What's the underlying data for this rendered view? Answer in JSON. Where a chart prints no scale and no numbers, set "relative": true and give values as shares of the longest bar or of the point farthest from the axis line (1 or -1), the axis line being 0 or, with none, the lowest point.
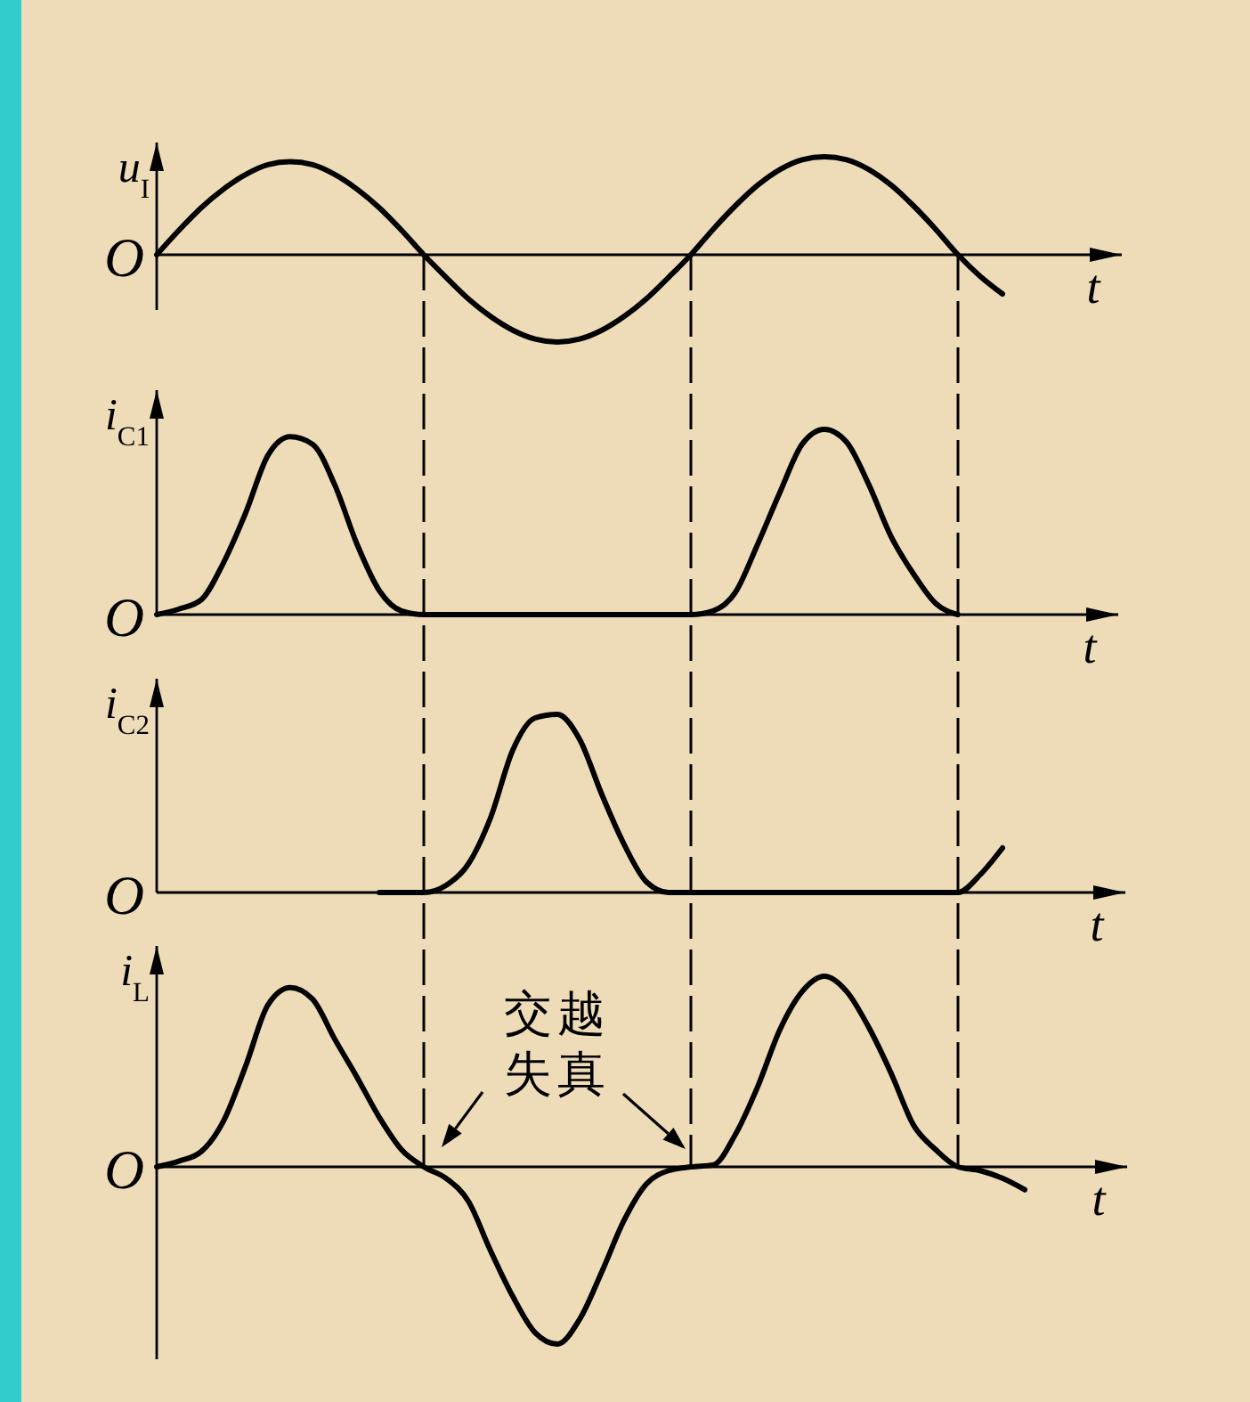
{
  "chart_data": [
    {
      "type": "line",
      "relative": true,
      "ylabel": "u$_{I}$",
      "xlabel": "t",
      "color": "#000000",
      "categories": [
        null,
        null,
        null,
        null,
        null,
        null,
        null,
        null,
        null,
        null,
        null,
        null,
        null,
        null,
        null,
        null,
        null,
        null,
        null,
        null,
        null,
        null,
        null,
        null,
        null,
        null,
        null,
        null,
        null,
        null,
        null,
        null,
        null,
        null,
        null,
        null,
        null,
        null,
        null,
        null
      ],
      "values": [
        0,
        0.25,
        0.48,
        0.67,
        0.82,
        0.92,
        0.95,
        0.92,
        0.82,
        0.67,
        0.48,
        0.25,
        0,
        -0.23,
        -0.45,
        -0.63,
        -0.77,
        -0.86,
        -0.89,
        -0.86,
        -0.77,
        -0.63,
        -0.45,
        -0.23,
        0,
        0.26,
        0.5,
        0.71,
        0.87,
        0.97,
        1,
        0.97,
        0.87,
        0.71,
        0.5,
        0.26,
        0,
        -0.22,
        -0.4,
        null
      ],
      "annotations": [
        "O"
      ]
    },
    {
      "type": "line",
      "relative": true,
      "ylabel": "i$_{C1}$",
      "xlabel": "t",
      "color": "#000000",
      "grid": "x",
      "categories": [
        null,
        null,
        null,
        null,
        null,
        null,
        null,
        null,
        null,
        null,
        null,
        null,
        null,
        null,
        null,
        null,
        null,
        null,
        null,
        null,
        null,
        null,
        null,
        null,
        null,
        null,
        null,
        null,
        null,
        null,
        null,
        null,
        null,
        null,
        null,
        null,
        null,
        null,
        null,
        null
      ],
      "values": [
        0,
        0.03,
        0.08,
        0.28,
        0.55,
        0.86,
        0.96,
        0.92,
        0.7,
        0.38,
        0.13,
        0.02,
        0,
        0,
        0,
        0,
        0,
        0,
        0,
        0,
        0,
        0,
        0,
        0,
        0,
        0.02,
        0.12,
        0.38,
        0.66,
        0.92,
        1,
        0.93,
        0.7,
        0.42,
        0.22,
        0.06,
        0,
        null,
        null,
        null
      ],
      "annotations": [
        "O"
      ]
    },
    {
      "type": "line",
      "relative": true,
      "ylabel": "i$_{C2}$",
      "xlabel": "t",
      "color": "#000000",
      "grid": "x",
      "categories": [
        null,
        null,
        null,
        null,
        null,
        null,
        null,
        null,
        null,
        null,
        null,
        null,
        null,
        null,
        null,
        null,
        null,
        null,
        null,
        null,
        null,
        null,
        null,
        null,
        null,
        null,
        null,
        null,
        null,
        null,
        null,
        null,
        null,
        null,
        null,
        null,
        null,
        null,
        null,
        null
      ],
      "values": [
        null,
        null,
        null,
        null,
        null,
        null,
        null,
        null,
        null,
        null,
        0,
        0,
        0,
        0.04,
        0.16,
        0.42,
        0.8,
        0.98,
        1,
        0.86,
        0.55,
        0.27,
        0.06,
        0,
        0,
        0,
        0,
        0,
        0,
        0,
        0,
        0,
        0,
        0,
        0,
        0,
        0,
        0.1,
        0.25,
        null
      ],
      "annotations": [
        "O"
      ]
    },
    {
      "type": "line",
      "relative": true,
      "ylabel": "i$_{L}$",
      "xlabel": "t",
      "color": "#000000",
      "categories": [
        null,
        null,
        null,
        null,
        null,
        null,
        null,
        null,
        null,
        null,
        null,
        null,
        null,
        null,
        null,
        null,
        null,
        null,
        null,
        null,
        null,
        null,
        null,
        null,
        null,
        null,
        null,
        null,
        null,
        null,
        null,
        null,
        null,
        null,
        null,
        null,
        null,
        null,
        null,
        null
      ],
      "values": [
        0,
        0.03,
        0.08,
        0.24,
        0.53,
        0.85,
        0.94,
        0.88,
        0.67,
        0.47,
        0.26,
        0.09,
        0,
        -0.06,
        -0.18,
        -0.44,
        -0.68,
        -0.87,
        -0.93,
        -0.8,
        -0.55,
        -0.28,
        -0.09,
        -0.02,
        0,
        0.01,
        0.17,
        0.42,
        0.72,
        0.92,
        1,
        0.92,
        0.73,
        0.49,
        0.22,
        0.09,
        0,
        -0.02,
        -0.06,
        -0.12
      ],
      "annotations": [
        "O",
        "交越失真"
      ]
    }
  ]
}
